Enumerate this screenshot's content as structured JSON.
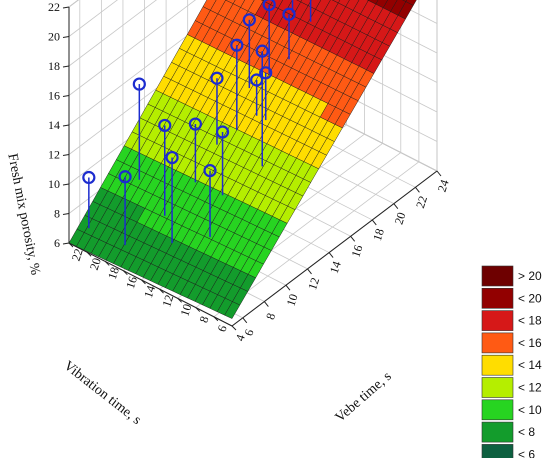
{
  "chart_data": {
    "type": "surface3d",
    "title": "",
    "xlabel": "Vebe time, s",
    "ylabel": "Vibration time, s",
    "zlabel": "Fresh mix porosity, %",
    "x_ticks": [
      "6",
      "8",
      "10",
      "12",
      "14",
      "16",
      "18",
      "20",
      "22",
      "24"
    ],
    "y_ticks": [
      "4",
      "6",
      "8",
      "10",
      "12",
      "14",
      "16",
      "18",
      "20",
      "22"
    ],
    "z_ticks": [
      "6",
      "8",
      "10",
      "12",
      "14",
      "16",
      "18",
      "20",
      "22"
    ],
    "xlim": [
      5,
      24
    ],
    "ylim": [
      4,
      22
    ],
    "zlim": [
      6,
      22
    ],
    "surface": {
      "corners": [
        {
          "x": 5,
          "y": 22,
          "z": 6
        },
        {
          "x": 5,
          "y": 4,
          "z": 6.5
        },
        {
          "x": 24,
          "y": 4,
          "z": 20
        },
        {
          "x": 24,
          "y": 22,
          "z": 20
        }
      ]
    },
    "points": [
      {
        "x": 6,
        "y": 21,
        "z": 10.2
      },
      {
        "x": 6,
        "y": 17,
        "z": 11.5
      },
      {
        "x": 7,
        "y": 13,
        "z": 13.5
      },
      {
        "x": 8,
        "y": 15,
        "z": 14.5
      },
      {
        "x": 8,
        "y": 10,
        "z": 13
      },
      {
        "x": 9,
        "y": 19,
        "z": 15.5
      },
      {
        "x": 10,
        "y": 14,
        "z": 13.8
      },
      {
        "x": 10,
        "y": 11,
        "z": 14.2
      },
      {
        "x": 12,
        "y": 9,
        "z": 19.2
      },
      {
        "x": 12,
        "y": 14,
        "z": 15.8
      },
      {
        "x": 14,
        "y": 11,
        "z": 16
      },
      {
        "x": 14,
        "y": 12,
        "z": 15.2
      },
      {
        "x": 13,
        "y": 13,
        "z": 17.8
      },
      {
        "x": 15,
        "y": 14,
        "z": 18.1
      },
      {
        "x": 16,
        "y": 13,
        "z": 18.9
      },
      {
        "x": 17,
        "y": 12,
        "z": 18
      },
      {
        "x": 19,
        "y": 14,
        "z": 18.7
      },
      {
        "x": 19,
        "y": 12,
        "z": 20
      },
      {
        "x": 20,
        "y": 13,
        "z": 21.5
      },
      {
        "x": 21,
        "y": 10,
        "z": 20.2
      },
      {
        "x": 22,
        "y": 9,
        "z": 20.4
      },
      {
        "x": 22,
        "y": 11,
        "z": 21.5
      }
    ],
    "legend": {
      "placement": "right",
      "items": [
        {
          "label": "> 20",
          "color": "#6e0000"
        },
        {
          "label": "< 20",
          "color": "#920000"
        },
        {
          "label": "< 18",
          "color": "#d61818"
        },
        {
          "label": "< 16",
          "color": "#ff5a14"
        },
        {
          "label": "< 14",
          "color": "#ffdd00"
        },
        {
          "label": "< 12",
          "color": "#b5ee00"
        },
        {
          "label": "< 10",
          "color": "#27d421"
        },
        {
          "label": "< 8",
          "color": "#139c2c"
        },
        {
          "label": "< 6",
          "color": "#0d6040"
        }
      ]
    },
    "grid": true
  }
}
